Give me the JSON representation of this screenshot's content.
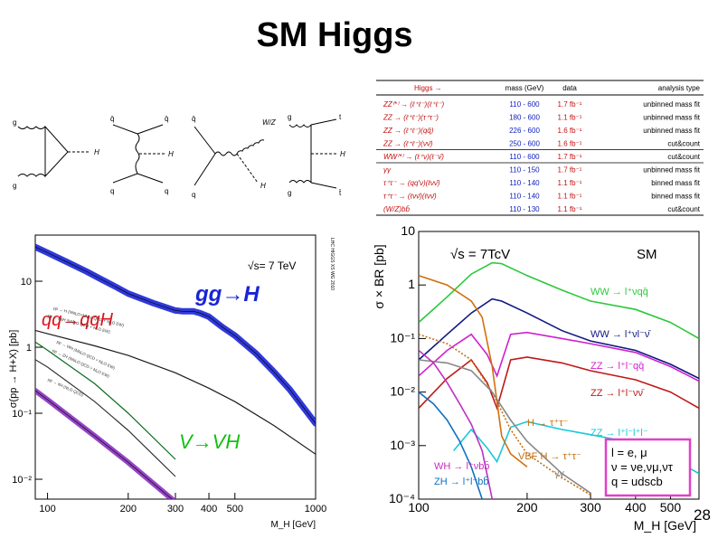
{
  "slide": {
    "title": "SM Higgs",
    "page_number": "28"
  },
  "diagrams": [
    {
      "labels": [
        "g",
        "g",
        "H"
      ]
    },
    {
      "labels": [
        "q̄",
        "q̄",
        "H",
        "q",
        "q"
      ]
    },
    {
      "labels": [
        "q̄",
        "W/Z",
        "H",
        "q"
      ]
    },
    {
      "labels": [
        "g",
        "t",
        "H",
        "g",
        "t̄"
      ]
    }
  ],
  "channel_table": {
    "headers": [
      "Higgs →",
      "mass (GeV)",
      "data",
      "analysis type"
    ],
    "rows": [
      [
        "ZZ⁽*⁾ → (ℓ⁺ℓ⁻)(ℓ⁺ℓ⁻)",
        "110 - 600",
        "1.7 fb⁻¹",
        "unbinned mass fit"
      ],
      [
        "ZZ → (ℓ⁺ℓ⁻)(τ⁺τ⁻)",
        "180 - 600",
        "1.1 fb⁻¹",
        "unbinned mass fit"
      ],
      [
        "ZZ → (ℓ⁺ℓ⁻)(qq̄)",
        "226 - 600",
        "1.6 fb⁻¹",
        "unbinned mass fit"
      ],
      [
        "ZZ → (ℓ⁺ℓ⁻)(νν̄)",
        "250 - 600",
        "1.6 fb⁻¹",
        "cut&count"
      ],
      [
        "WW⁽*⁾ → (ℓ⁺ν)(ℓ⁻ν̄)",
        "110 - 600",
        "1.7 fb⁻¹",
        "cut&count"
      ],
      [
        "γγ",
        "110 - 150",
        "1.7 fb⁻¹",
        "unbinned mass fit"
      ],
      [
        "τ⁺τ⁻ → (qq′ν)(ℓνν̄)",
        "110 - 140",
        "1.1 fb⁻¹",
        "binned mass fit"
      ],
      [
        "τ⁺τ⁻ → (ℓνν̄)(ℓνν̄)",
        "110 - 140",
        "1.1 fb⁻¹",
        "binned mass fit"
      ],
      [
        "(W/Z)bb̄",
        "110 - 130",
        "1.1 fb⁻¹",
        "cut&count"
      ]
    ],
    "colors": {
      "channel": "#c01010",
      "mass": "#1020c0",
      "data": "#c01010",
      "analysis": "#000000"
    }
  },
  "chart_data": [
    {
      "type": "line",
      "ylabel": "σ(pp → H+X) [pb]",
      "xlabel": "M_H [GeV]",
      "sqrt_s": "√s= 7 TeV",
      "x_scale": "log",
      "y_scale": "log",
      "xlim": [
        90,
        1000
      ],
      "ylim": [
        0.005,
        50
      ],
      "x_ticks": [
        100,
        200,
        300,
        400,
        500,
        1000
      ],
      "y_ticks": [
        {
          "v": 10,
          "label": "10"
        },
        {
          "v": 1,
          "label": "1"
        },
        {
          "v": 0.1,
          "label": "10⁻¹"
        },
        {
          "v": 0.01,
          "label": "10⁻²"
        }
      ],
      "side_note": "LHC HIGGS XS WG 2010",
      "series": [
        {
          "name": "gg→H",
          "color": "#1a23d6",
          "band": 7,
          "label_color": "#1a23d6",
          "x": [
            90,
            100,
            120,
            140,
            160,
            180,
            200,
            250,
            300,
            320,
            350,
            370,
            400,
            450,
            500,
            600,
            700,
            800,
            1000
          ],
          "y": [
            33,
            27,
            19,
            14,
            10.5,
            8.2,
            6.5,
            4.6,
            3.6,
            3.5,
            3.5,
            3.3,
            2.9,
            2.0,
            1.5,
            0.8,
            0.42,
            0.23,
            0.07
          ],
          "annotation": "pp → H (NNLO+NNLL QCD + NLO EW)"
        },
        {
          "name": "qq→qqH",
          "color": "#1a1a1a",
          "band": 2,
          "label_color": "#e0101a",
          "x": [
            90,
            100,
            150,
            200,
            300,
            400,
            500,
            700,
            1000
          ],
          "y": [
            1.8,
            1.6,
            1.05,
            0.75,
            0.41,
            0.24,
            0.15,
            0.065,
            0.024
          ],
          "annotation": "pp → qqH (NNLO QCD + NLO EW)"
        },
        {
          "name": "WH",
          "color": "#0a6a1c",
          "band": 2,
          "label_color": null,
          "x": [
            90,
            100,
            150,
            200,
            300
          ],
          "y": [
            1.2,
            0.9,
            0.28,
            0.1,
            0.02
          ],
          "annotation": "pp → WH (NNLO QCD + NLO EW)"
        },
        {
          "name": "ZH",
          "color": "#333333",
          "band": 2,
          "label_color": null,
          "x": [
            90,
            100,
            150,
            200,
            300
          ],
          "y": [
            0.65,
            0.5,
            0.15,
            0.055,
            0.011
          ],
          "annotation": "pp → ZH (NNLO QCD + NLO EW)"
        },
        {
          "name": "ttH",
          "color": "#8a30c0",
          "band": 6,
          "label_color": null,
          "x": [
            90,
            100,
            150,
            200,
            300
          ],
          "y": [
            0.22,
            0.16,
            0.045,
            0.018,
            0.0045
          ],
          "annotation": "pp → ttH (NLO QCD)"
        }
      ],
      "labels": {
        "gg": "gg→H",
        "qq": "qq→qqH",
        "vv": "V→VH"
      }
    },
    {
      "type": "line",
      "ylabel": "σ × BR [pb]",
      "xlabel": "M_H [GeV]",
      "sqrt_s": "√s = 7TcV",
      "tag": "SM",
      "x_scale": "log",
      "y_scale": "log",
      "xlim": [
        100,
        600
      ],
      "ylim": [
        0.0001,
        10
      ],
      "x_ticks": [
        100,
        200,
        300,
        400,
        500
      ],
      "y_ticks": [
        {
          "v": 10,
          "label": "10"
        },
        {
          "v": 1,
          "label": "1"
        },
        {
          "v": 0.1,
          "label": "10⁻¹"
        },
        {
          "v": 0.01,
          "label": "10⁻²"
        },
        {
          "v": 0.001,
          "label": "10⁻³"
        },
        {
          "v": 0.0001,
          "label": "10⁻⁴"
        }
      ],
      "series": [
        {
          "name": "WW → l⁺νqq̄",
          "color": "#2ac83a",
          "dashed": false,
          "x": [
            100,
            120,
            140,
            160,
            170,
            200,
            250,
            300,
            400,
            500,
            600
          ],
          "y": [
            0.2,
            0.6,
            1.6,
            2.6,
            2.5,
            1.5,
            0.8,
            0.5,
            0.35,
            0.2,
            0.1
          ]
        },
        {
          "name": "WW → l⁺νl⁻ν̄",
          "color": "#101880",
          "dashed": false,
          "x": [
            100,
            120,
            140,
            160,
            170,
            200,
            250,
            300,
            400,
            500,
            600
          ],
          "y": [
            0.04,
            0.12,
            0.3,
            0.55,
            0.5,
            0.3,
            0.14,
            0.09,
            0.06,
            0.033,
            0.018
          ]
        },
        {
          "name": "ZZ → l⁺l⁻qq̄",
          "color": "#d020d0",
          "dashed": false,
          "x": [
            100,
            120,
            140,
            155,
            165,
            180,
            200,
            250,
            300,
            400,
            500,
            600
          ],
          "y": [
            0.02,
            0.06,
            0.12,
            0.05,
            0.02,
            0.12,
            0.13,
            0.1,
            0.08,
            0.055,
            0.03,
            0.016
          ]
        },
        {
          "name": "ZZ → l⁺l⁻νν̄",
          "color": "#c01818",
          "dashed": false,
          "x": [
            100,
            120,
            140,
            155,
            165,
            180,
            200,
            250,
            300,
            400,
            500,
            600
          ],
          "y": [
            0.005,
            0.018,
            0.04,
            0.015,
            0.005,
            0.04,
            0.045,
            0.035,
            0.025,
            0.017,
            0.01,
            0.005
          ]
        },
        {
          "name": "ZZ → l⁺l⁻l⁺l⁻",
          "color": "#18c8d8",
          "dashed": false,
          "x": [
            125,
            140,
            155,
            165,
            180,
            200,
            250,
            300,
            400,
            500,
            600
          ],
          "y": [
            0.0008,
            0.002,
            0.0009,
            0.0005,
            0.0022,
            0.0028,
            0.002,
            0.0016,
            0.0011,
            0.0006,
            0.0003
          ]
        },
        {
          "name": "H → τ⁺τ⁻",
          "color": "#d07010",
          "dashed": false,
          "x": [
            100,
            120,
            140,
            150,
            160,
            170,
            180,
            200
          ],
          "y": [
            1.5,
            1.0,
            0.5,
            0.25,
            0.03,
            0.0015,
            0.0007,
            0.0004
          ]
        },
        {
          "name": "VBF H → τ⁺τ⁻",
          "color": "#c07010",
          "dashed": true,
          "x": [
            100,
            120,
            140,
            160,
            180,
            200,
            250,
            300
          ],
          "y": [
            0.12,
            0.08,
            0.04,
            0.01,
            0.002,
            0.0007,
            0.00025,
            0.00012
          ]
        },
        {
          "name": "γγ",
          "color": "#888888",
          "dashed": false,
          "x": [
            100,
            120,
            140,
            160,
            180,
            200,
            250,
            300
          ],
          "y": [
            0.04,
            0.035,
            0.025,
            0.01,
            0.003,
            0.0012,
            0.0003,
            0.00013
          ]
        },
        {
          "name": "WH → l⁺νbb̄",
          "color": "#c030c0",
          "dashed": false,
          "x": [
            100,
            110,
            120,
            130,
            140,
            150,
            160
          ],
          "y": [
            0.06,
            0.035,
            0.015,
            0.006,
            0.0025,
            0.0008,
            0.0001
          ]
        },
        {
          "name": "ZH → l⁺l⁻bb̄",
          "color": "#1070c0",
          "dashed": false,
          "x": [
            100,
            110,
            120,
            130,
            140,
            150
          ],
          "y": [
            0.01,
            0.006,
            0.003,
            0.0012,
            0.0004,
            0.0001
          ]
        }
      ],
      "legend_box": [
        "l = e, μ",
        "ν = νe,νμ,ντ",
        "q = udscb"
      ]
    }
  ]
}
